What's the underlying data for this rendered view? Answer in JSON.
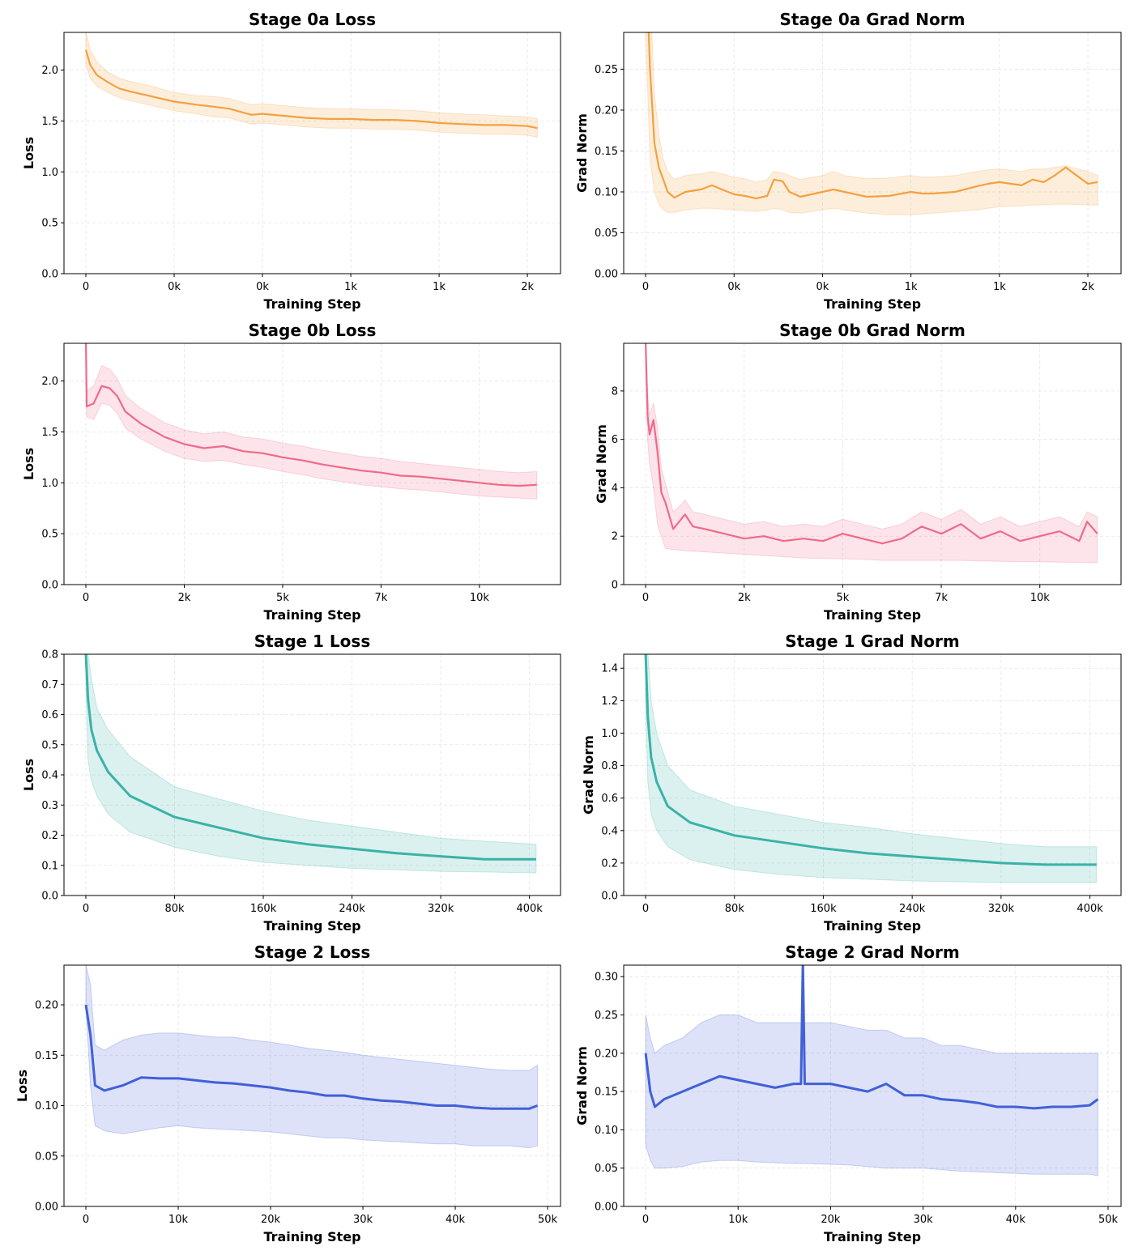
{
  "chart_data": [
    {
      "type": "line",
      "title": "Stage 0a Loss",
      "xlabel": "Training Step",
      "ylabel": "Loss",
      "color": "#F5A03F",
      "xlim": [
        -99,
        2150
      ],
      "ylim": [
        0,
        2.37
      ],
      "grid": true,
      "xticks": {
        "values": [
          0,
          400,
          800,
          1200,
          1600,
          2000
        ],
        "labels": [
          "0",
          "0k",
          "0k",
          "1k",
          "1k",
          "2k"
        ]
      },
      "yticks": {
        "values": [
          0,
          0.5,
          1.0,
          1.5,
          2.0
        ],
        "labels": [
          "0.0",
          "0.5",
          "1.0",
          "1.5",
          "2.0"
        ]
      },
      "x": [
        0,
        20,
        50,
        100,
        150,
        200,
        300,
        400,
        500,
        580,
        650,
        750,
        800,
        900,
        1000,
        1100,
        1200,
        1300,
        1400,
        1500,
        1600,
        1700,
        1800,
        1900,
        2000,
        2045
      ],
      "mean": [
        2.2,
        2.05,
        1.95,
        1.88,
        1.82,
        1.79,
        1.74,
        1.69,
        1.66,
        1.64,
        1.62,
        1.56,
        1.57,
        1.55,
        1.53,
        1.52,
        1.52,
        1.51,
        1.51,
        1.5,
        1.48,
        1.47,
        1.46,
        1.46,
        1.45,
        1.43
      ],
      "lower": [
        2.05,
        1.92,
        1.84,
        1.78,
        1.73,
        1.7,
        1.65,
        1.6,
        1.57,
        1.54,
        1.53,
        1.47,
        1.48,
        1.46,
        1.44,
        1.43,
        1.43,
        1.42,
        1.42,
        1.41,
        1.39,
        1.38,
        1.37,
        1.37,
        1.36,
        1.34
      ],
      "upper": [
        2.38,
        2.2,
        2.08,
        1.98,
        1.92,
        1.89,
        1.84,
        1.78,
        1.75,
        1.74,
        1.72,
        1.66,
        1.67,
        1.65,
        1.63,
        1.62,
        1.62,
        1.61,
        1.61,
        1.6,
        1.58,
        1.57,
        1.56,
        1.55,
        1.54,
        1.52
      ]
    },
    {
      "type": "line",
      "title": "Stage 0a Grad Norm",
      "xlabel": "Training Step",
      "ylabel": "Grad Norm",
      "color": "#F5A03F",
      "xlim": [
        -99,
        2150
      ],
      "ylim": [
        0,
        0.295
      ],
      "grid": true,
      "xticks": {
        "values": [
          0,
          400,
          800,
          1200,
          1600,
          2000
        ],
        "labels": [
          "0",
          "0k",
          "0k",
          "1k",
          "1k",
          "2k"
        ]
      },
      "yticks": {
        "values": [
          0,
          0.05,
          0.1,
          0.15,
          0.2,
          0.25
        ],
        "labels": [
          "0.00",
          "0.05",
          "0.10",
          "0.15",
          "0.20",
          "0.25"
        ]
      },
      "x": [
        0,
        20,
        40,
        60,
        80,
        100,
        130,
        180,
        250,
        300,
        400,
        450,
        500,
        550,
        580,
        620,
        650,
        700,
        800,
        850,
        900,
        1000,
        1100,
        1200,
        1250,
        1300,
        1400,
        1500,
        1550,
        1600,
        1700,
        1750,
        1800,
        1850,
        1900,
        2000,
        2045
      ],
      "mean": [
        0.4,
        0.25,
        0.16,
        0.13,
        0.115,
        0.1,
        0.093,
        0.1,
        0.103,
        0.108,
        0.097,
        0.095,
        0.092,
        0.095,
        0.115,
        0.113,
        0.1,
        0.094,
        0.1,
        0.103,
        0.1,
        0.094,
        0.095,
        0.1,
        0.098,
        0.098,
        0.1,
        0.107,
        0.11,
        0.112,
        0.108,
        0.115,
        0.112,
        0.12,
        0.13,
        0.11,
        0.112
      ],
      "lower": [
        0.3,
        0.14,
        0.1,
        0.085,
        0.078,
        0.075,
        0.075,
        0.078,
        0.08,
        0.08,
        0.078,
        0.077,
        0.076,
        0.078,
        0.08,
        0.078,
        0.075,
        0.074,
        0.078,
        0.08,
        0.078,
        0.074,
        0.072,
        0.072,
        0.073,
        0.074,
        0.076,
        0.078,
        0.08,
        0.082,
        0.083,
        0.084,
        0.084,
        0.085,
        0.085,
        0.084,
        0.084
      ],
      "upper": [
        0.45,
        0.35,
        0.22,
        0.17,
        0.14,
        0.125,
        0.115,
        0.12,
        0.122,
        0.125,
        0.118,
        0.116,
        0.112,
        0.115,
        0.125,
        0.123,
        0.12,
        0.115,
        0.12,
        0.125,
        0.12,
        0.116,
        0.117,
        0.12,
        0.118,
        0.118,
        0.12,
        0.125,
        0.127,
        0.128,
        0.125,
        0.128,
        0.128,
        0.13,
        0.132,
        0.125,
        0.12
      ]
    },
    {
      "type": "line",
      "title": "Stage 0b Loss",
      "xlabel": "Training Step",
      "ylabel": "Loss",
      "color": "#EF6A8A",
      "xlim": [
        -556,
        12060
      ],
      "ylim": [
        0,
        2.37
      ],
      "grid": true,
      "xticks": {
        "values": [
          0,
          2500,
          5000,
          7500,
          10000
        ],
        "labels": [
          "0",
          "2k",
          "5k",
          "7k",
          "10k"
        ]
      },
      "yticks": {
        "values": [
          0,
          0.5,
          1.0,
          1.5,
          2.0
        ],
        "labels": [
          "0.0",
          "0.5",
          "1.0",
          "1.5",
          "2.0"
        ]
      },
      "x": [
        0,
        20,
        200,
        400,
        600,
        800,
        1000,
        1400,
        2000,
        2500,
        3000,
        3500,
        4000,
        4500,
        5000,
        5500,
        6000,
        6500,
        7000,
        7500,
        8000,
        8500,
        9000,
        9500,
        10000,
        10500,
        11000,
        11460
      ],
      "mean": [
        2.45,
        1.75,
        1.78,
        1.95,
        1.93,
        1.85,
        1.7,
        1.58,
        1.45,
        1.38,
        1.34,
        1.36,
        1.31,
        1.29,
        1.25,
        1.22,
        1.18,
        1.15,
        1.12,
        1.1,
        1.07,
        1.06,
        1.04,
        1.02,
        1.0,
        0.98,
        0.97,
        0.98
      ],
      "lower": [
        2.3,
        1.65,
        1.62,
        1.78,
        1.76,
        1.68,
        1.54,
        1.43,
        1.31,
        1.24,
        1.21,
        1.22,
        1.18,
        1.15,
        1.11,
        1.08,
        1.04,
        1.01,
        0.98,
        0.96,
        0.94,
        0.93,
        0.91,
        0.89,
        0.87,
        0.86,
        0.85,
        0.84
      ],
      "upper": [
        2.45,
        1.9,
        1.95,
        2.15,
        2.12,
        2.02,
        1.86,
        1.73,
        1.59,
        1.52,
        1.48,
        1.5,
        1.45,
        1.43,
        1.39,
        1.36,
        1.32,
        1.29,
        1.26,
        1.24,
        1.21,
        1.19,
        1.17,
        1.15,
        1.13,
        1.11,
        1.1,
        1.11
      ]
    },
    {
      "type": "line",
      "title": "Stage 0b Grad Norm",
      "xlabel": "Training Step",
      "ylabel": "Grad Norm",
      "color": "#EF6A8A",
      "xlim": [
        -556,
        12060
      ],
      "ylim": [
        0,
        9.97
      ],
      "grid": true,
      "xticks": {
        "values": [
          0,
          2500,
          5000,
          7500,
          10000
        ],
        "labels": [
          "0",
          "2k",
          "5k",
          "7k",
          "10k"
        ]
      },
      "yticks": {
        "values": [
          0,
          2,
          4,
          6,
          8
        ],
        "labels": [
          "0",
          "2",
          "4",
          "6",
          "8"
        ]
      },
      "x": [
        0,
        50,
        100,
        200,
        300,
        400,
        500,
        700,
        900,
        1000,
        1200,
        1500,
        2000,
        2500,
        3000,
        3500,
        4000,
        4500,
        5000,
        5500,
        6000,
        6500,
        7000,
        7500,
        8000,
        8500,
        9000,
        9500,
        10000,
        10500,
        11000,
        11200,
        11460
      ],
      "mean": [
        10,
        7,
        6.2,
        6.8,
        5.5,
        3.8,
        3.4,
        2.3,
        2.7,
        2.9,
        2.4,
        2.3,
        2.1,
        1.9,
        2.0,
        1.8,
        1.9,
        1.8,
        2.1,
        1.9,
        1.7,
        1.9,
        2.4,
        2.1,
        2.5,
        1.9,
        2.2,
        1.8,
        2.0,
        2.2,
        1.8,
        2.6,
        2.1
      ],
      "lower": [
        9,
        6,
        5,
        4,
        2.5,
        2,
        1.5,
        1.45,
        1.42,
        1.4,
        1.38,
        1.35,
        1.3,
        1.25,
        1.2,
        1.15,
        1.1,
        1.08,
        1.06,
        1.04,
        1.0,
        1.0,
        1.0,
        1.0,
        1.0,
        0.98,
        0.96,
        0.95,
        0.94,
        0.93,
        0.92,
        0.91,
        0.9
      ],
      "upper": [
        10,
        8,
        7,
        7.5,
        6.5,
        4.8,
        4.2,
        3.0,
        3.3,
        3.5,
        3.0,
        2.9,
        2.7,
        2.5,
        2.6,
        2.4,
        2.5,
        2.4,
        2.7,
        2.5,
        2.3,
        2.5,
        3.0,
        2.7,
        3.1,
        2.5,
        2.8,
        2.4,
        2.6,
        2.8,
        2.4,
        3.0,
        2.8
      ]
    },
    {
      "type": "line",
      "title": "Stage 1 Loss",
      "xlabel": "Training Step",
      "ylabel": "Loss",
      "color": "#3AB2A8",
      "xlim": [
        -19700,
        428000
      ],
      "ylim": [
        0,
        0.8
      ],
      "grid": true,
      "xticks": {
        "values": [
          0,
          80000,
          160000,
          240000,
          320000,
          400000
        ],
        "labels": [
          "0",
          "80k",
          "160k",
          "240k",
          "320k",
          "400k"
        ]
      },
      "yticks": {
        "values": [
          0,
          0.1,
          0.2,
          0.3,
          0.4,
          0.5,
          0.6,
          0.7,
          0.8
        ],
        "labels": [
          "0.0",
          "0.1",
          "0.2",
          "0.3",
          "0.4",
          "0.5",
          "0.6",
          "0.7",
          "0.8"
        ]
      },
      "x": [
        0,
        2000,
        5000,
        10000,
        20000,
        40000,
        80000,
        120000,
        160000,
        200000,
        240000,
        280000,
        320000,
        360000,
        406000
      ],
      "mean": [
        0.8,
        0.65,
        0.55,
        0.48,
        0.41,
        0.33,
        0.26,
        0.225,
        0.19,
        0.17,
        0.155,
        0.14,
        0.13,
        0.12,
        0.12
      ],
      "lower": [
        0.7,
        0.45,
        0.38,
        0.33,
        0.27,
        0.21,
        0.16,
        0.13,
        0.11,
        0.1,
        0.09,
        0.085,
        0.08,
        0.078,
        0.075
      ],
      "upper": [
        0.8,
        0.8,
        0.72,
        0.62,
        0.55,
        0.46,
        0.36,
        0.32,
        0.28,
        0.25,
        0.23,
        0.21,
        0.19,
        0.18,
        0.17
      ]
    },
    {
      "type": "line",
      "title": "Stage 1 Grad Norm",
      "xlabel": "Training Step",
      "ylabel": "Grad Norm",
      "color": "#3AB2A8",
      "xlim": [
        -19700,
        428000
      ],
      "ylim": [
        0,
        1.486
      ],
      "grid": true,
      "xticks": {
        "values": [
          0,
          80000,
          160000,
          240000,
          320000,
          400000
        ],
        "labels": [
          "0",
          "80k",
          "160k",
          "240k",
          "320k",
          "400k"
        ]
      },
      "yticks": {
        "values": [
          0,
          0.2,
          0.4,
          0.6,
          0.8,
          1.0,
          1.2,
          1.4
        ],
        "labels": [
          "0.0",
          "0.2",
          "0.4",
          "0.6",
          "0.8",
          "1.0",
          "1.2",
          "1.4"
        ]
      },
      "x": [
        0,
        2000,
        5000,
        10000,
        20000,
        40000,
        80000,
        120000,
        160000,
        200000,
        240000,
        280000,
        320000,
        360000,
        406000
      ],
      "mean": [
        1.5,
        1.1,
        0.85,
        0.7,
        0.55,
        0.45,
        0.37,
        0.33,
        0.29,
        0.26,
        0.24,
        0.22,
        0.2,
        0.19,
        0.19
      ],
      "lower": [
        1.2,
        0.7,
        0.5,
        0.4,
        0.3,
        0.22,
        0.16,
        0.13,
        0.11,
        0.1,
        0.09,
        0.085,
        0.08,
        0.08,
        0.08
      ],
      "upper": [
        1.5,
        1.5,
        1.2,
        1.0,
        0.8,
        0.65,
        0.55,
        0.5,
        0.45,
        0.42,
        0.38,
        0.35,
        0.32,
        0.3,
        0.3
      ]
    },
    {
      "type": "line",
      "title": "Stage 2 Loss",
      "xlabel": "Training Step",
      "ylabel": "Loss",
      "color": "#4160D8",
      "xlim": [
        -2370,
        51400
      ],
      "ylim": [
        0,
        0.2394
      ],
      "grid": true,
      "xticks": {
        "values": [
          0,
          10000,
          20000,
          30000,
          40000,
          50000
        ],
        "labels": [
          "0",
          "10k",
          "20k",
          "30k",
          "40k",
          "50k"
        ]
      },
      "yticks": {
        "values": [
          0,
          0.05,
          0.1,
          0.15,
          0.2
        ],
        "labels": [
          "0.00",
          "0.05",
          "0.10",
          "0.15",
          "0.20"
        ]
      },
      "x": [
        0,
        500,
        1000,
        2000,
        4000,
        6000,
        8000,
        10000,
        12000,
        14000,
        16000,
        18000,
        20000,
        22000,
        24000,
        26000,
        28000,
        30000,
        32000,
        34000,
        36000,
        38000,
        40000,
        42000,
        44000,
        46000,
        48000,
        48900
      ],
      "mean": [
        0.2,
        0.17,
        0.12,
        0.115,
        0.12,
        0.128,
        0.127,
        0.127,
        0.125,
        0.123,
        0.122,
        0.12,
        0.118,
        0.115,
        0.113,
        0.11,
        0.11,
        0.107,
        0.105,
        0.104,
        0.102,
        0.1,
        0.1,
        0.098,
        0.097,
        0.097,
        0.097,
        0.1
      ],
      "lower": [
        0.2,
        0.12,
        0.08,
        0.075,
        0.072,
        0.075,
        0.078,
        0.08,
        0.078,
        0.077,
        0.076,
        0.075,
        0.074,
        0.072,
        0.07,
        0.068,
        0.068,
        0.066,
        0.065,
        0.064,
        0.063,
        0.062,
        0.062,
        0.06,
        0.06,
        0.06,
        0.058,
        0.06
      ],
      "upper": [
        0.24,
        0.22,
        0.16,
        0.155,
        0.165,
        0.17,
        0.172,
        0.172,
        0.17,
        0.168,
        0.168,
        0.165,
        0.163,
        0.16,
        0.157,
        0.155,
        0.153,
        0.15,
        0.148,
        0.146,
        0.144,
        0.142,
        0.14,
        0.138,
        0.136,
        0.135,
        0.135,
        0.14
      ]
    },
    {
      "type": "line",
      "title": "Stage 2 Grad Norm",
      "xlabel": "Training Step",
      "ylabel": "Grad Norm",
      "color": "#4160D8",
      "xlim": [
        -2370,
        51400
      ],
      "ylim": [
        0,
        0.315
      ],
      "grid": true,
      "xticks": {
        "values": [
          0,
          10000,
          20000,
          30000,
          40000,
          50000
        ],
        "labels": [
          "0",
          "10k",
          "20k",
          "30k",
          "40k",
          "50k"
        ]
      },
      "yticks": {
        "values": [
          0,
          0.05,
          0.1,
          0.15,
          0.2,
          0.25,
          0.3
        ],
        "labels": [
          "0.00",
          "0.05",
          "0.10",
          "0.15",
          "0.20",
          "0.25",
          "0.30"
        ]
      },
      "x": [
        0,
        500,
        1000,
        2000,
        4000,
        6000,
        8000,
        10000,
        12000,
        14000,
        16000,
        16800,
        17000,
        17200,
        20000,
        22000,
        24000,
        26000,
        28000,
        30000,
        32000,
        34000,
        36000,
        38000,
        40000,
        42000,
        44000,
        46000,
        48000,
        48900
      ],
      "mean": [
        0.2,
        0.15,
        0.13,
        0.14,
        0.15,
        0.16,
        0.17,
        0.165,
        0.16,
        0.155,
        0.16,
        0.16,
        0.32,
        0.16,
        0.16,
        0.155,
        0.15,
        0.16,
        0.145,
        0.145,
        0.14,
        0.138,
        0.135,
        0.13,
        0.13,
        0.128,
        0.13,
        0.13,
        0.132,
        0.14
      ],
      "lower": [
        0.08,
        0.06,
        0.05,
        0.05,
        0.052,
        0.058,
        0.06,
        0.06,
        0.058,
        0.057,
        0.056,
        0.056,
        0.056,
        0.056,
        0.055,
        0.054,
        0.052,
        0.05,
        0.05,
        0.05,
        0.048,
        0.046,
        0.045,
        0.044,
        0.043,
        0.042,
        0.042,
        0.042,
        0.042,
        0.04
      ],
      "upper": [
        0.25,
        0.22,
        0.2,
        0.21,
        0.22,
        0.24,
        0.25,
        0.25,
        0.24,
        0.24,
        0.24,
        0.24,
        0.24,
        0.24,
        0.24,
        0.235,
        0.23,
        0.23,
        0.22,
        0.22,
        0.21,
        0.21,
        0.205,
        0.2,
        0.2,
        0.2,
        0.2,
        0.2,
        0.2,
        0.2
      ]
    }
  ]
}
